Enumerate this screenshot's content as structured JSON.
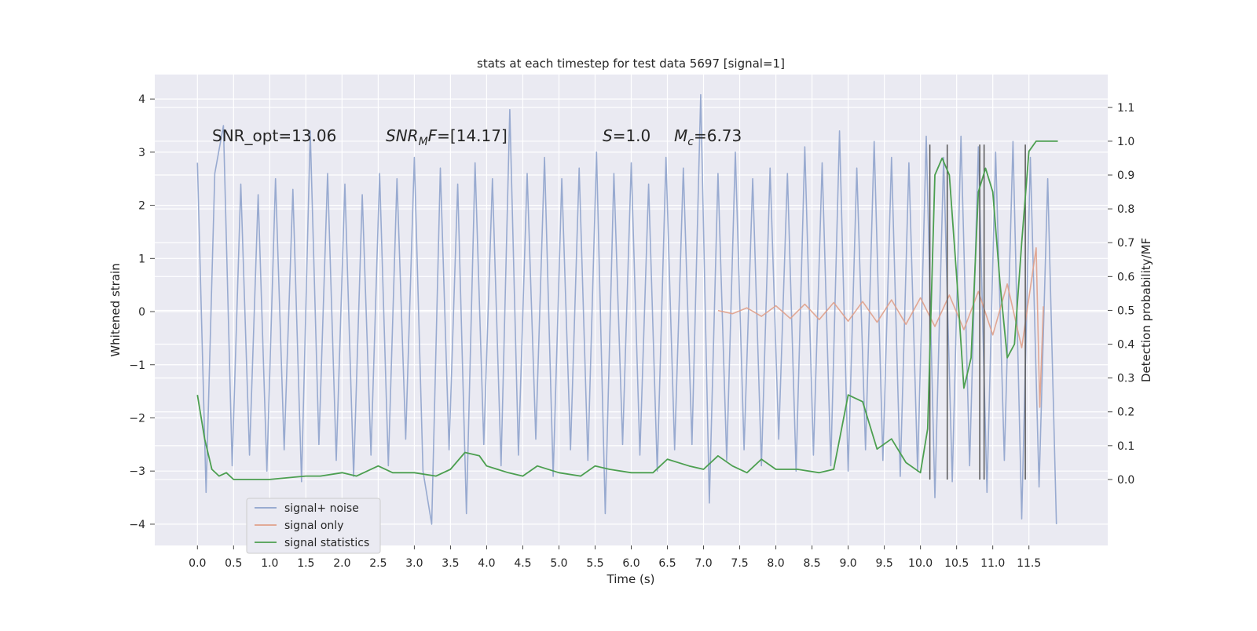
{
  "chart_data": {
    "type": "line",
    "title": "stats at each timestep for test data 5697 [signal=1]",
    "xlabel": "Time (s)",
    "ylabel": "Whitened strain",
    "y2label": "Detection probability/MF",
    "xlim": [
      -0.59,
      12.59
    ],
    "ylim": [
      -4.4,
      4.46
    ],
    "y2lim": [
      -0.195,
      1.197
    ],
    "grid": true,
    "legend": "lower left",
    "xticks": [
      {
        "value": 0,
        "label": "0.0"
      },
      {
        "value": 0.5,
        "label": "0.5"
      },
      {
        "value": 1,
        "label": "1.0"
      },
      {
        "value": 1.5,
        "label": "1.5"
      },
      {
        "value": 2,
        "label": "2.0"
      },
      {
        "value": 2.5,
        "label": "2.5"
      },
      {
        "value": 3,
        "label": "3.0"
      },
      {
        "value": 3.5,
        "label": "3.5"
      },
      {
        "value": 4,
        "label": "4.0"
      },
      {
        "value": 4.5,
        "label": "4.5"
      },
      {
        "value": 5,
        "label": "5.0"
      },
      {
        "value": 5.5,
        "label": "5.5"
      },
      {
        "value": 6,
        "label": "6.0"
      },
      {
        "value": 6.5,
        "label": "6.5"
      },
      {
        "value": 7,
        "label": "7.0"
      },
      {
        "value": 7.5,
        "label": "7.5"
      },
      {
        "value": 8,
        "label": "8.0"
      },
      {
        "value": 8.5,
        "label": "8.5"
      },
      {
        "value": 9,
        "label": "9.0"
      },
      {
        "value": 9.5,
        "label": "9.5"
      },
      {
        "value": 10,
        "label": "10.0"
      },
      {
        "value": 10.5,
        "label": "10.5"
      },
      {
        "value": 11,
        "label": "11.0"
      },
      {
        "value": 11.5,
        "label": "11.5"
      }
    ],
    "yticks": [
      {
        "value": -4,
        "label": "−4"
      },
      {
        "value": -3,
        "label": "−3"
      },
      {
        "value": -2,
        "label": "−2"
      },
      {
        "value": -1,
        "label": "−1"
      },
      0,
      1,
      2,
      3,
      4
    ],
    "y2ticks": [
      {
        "value": 0,
        "label": "0.0"
      },
      {
        "value": 0.1,
        "label": "0.1"
      },
      {
        "value": 0.2,
        "label": "0.2"
      },
      {
        "value": 0.3,
        "label": "0.3"
      },
      {
        "value": 0.4,
        "label": "0.4"
      },
      {
        "value": 0.5,
        "label": "0.5"
      },
      {
        "value": 0.6,
        "label": "0.6"
      },
      {
        "value": 0.7,
        "label": "0.7"
      },
      {
        "value": 0.8,
        "label": "0.8"
      },
      {
        "value": 0.9,
        "label": "0.9"
      },
      {
        "value": 1,
        "label": "1.0"
      },
      {
        "value": 1.1,
        "label": "1.1"
      }
    ],
    "annotations": [
      [
        {
          "text": "SNR_opt=13.06"
        }
      ],
      [
        {
          "text": "SNR",
          "italic": true
        },
        {
          "text": "M",
          "italic": true,
          "sub": true
        },
        {
          "text": "F",
          "italic": true
        },
        {
          "text": "=[14.17]"
        }
      ],
      [
        {
          "text": "S",
          "italic": true
        },
        {
          "text": "=1.0"
        }
      ],
      [
        {
          "text": "M",
          "italic": true
        },
        {
          "text": "c",
          "italic": true,
          "sub": true
        },
        {
          "text": "=6.73"
        }
      ]
    ],
    "vlines": {
      "x": [
        10.13,
        10.37,
        10.82,
        10.88,
        11.45
      ],
      "ymin": 0,
      "ymax": 0.99,
      "color": "#555555"
    },
    "series": [
      {
        "name": "signal+ noise",
        "color": "#8fa3cc",
        "x": [
          0,
          0.12,
          0.24,
          0.36,
          0.48,
          0.6,
          0.72,
          0.84,
          0.96,
          1.08,
          1.2,
          1.32,
          1.44,
          1.56,
          1.68,
          1.8,
          1.92,
          2.04,
          2.16,
          2.28,
          2.4,
          2.52,
          2.64,
          2.76,
          2.88,
          3,
          3.12,
          3.24,
          3.36,
          3.48,
          3.6,
          3.72,
          3.84,
          3.96,
          4.08,
          4.2,
          4.32,
          4.44,
          4.56,
          4.68,
          4.8,
          4.92,
          5.04,
          5.16,
          5.28,
          5.4,
          5.52,
          5.64,
          5.76,
          5.88,
          6,
          6.12,
          6.24,
          6.36,
          6.48,
          6.6,
          6.72,
          6.84,
          6.96,
          7.08,
          7.2,
          7.32,
          7.44,
          7.56,
          7.68,
          7.8,
          7.92,
          8.04,
          8.16,
          8.28,
          8.4,
          8.52,
          8.64,
          8.76,
          8.88,
          9,
          9.12,
          9.24,
          9.36,
          9.48,
          9.6,
          9.72,
          9.84,
          9.96,
          10.08,
          10.2,
          10.32,
          10.44,
          10.56,
          10.68,
          10.8,
          10.92,
          11.04,
          11.16,
          11.28,
          11.4,
          11.52,
          11.64,
          11.76,
          11.88
        ],
        "values": [
          2.8,
          -3.4,
          2.6,
          3.5,
          -2.9,
          2.4,
          -2.7,
          2.2,
          -3.0,
          2.5,
          -2.6,
          2.3,
          -3.2,
          3.4,
          -2.5,
          2.6,
          -2.8,
          2.4,
          -3.1,
          2.2,
          -2.7,
          2.6,
          -2.9,
          2.5,
          -2.4,
          2.9,
          -3.0,
          -4.0,
          2.7,
          -2.6,
          2.4,
          -3.8,
          2.8,
          -2.5,
          2.5,
          -2.9,
          3.8,
          -2.7,
          2.6,
          -2.4,
          2.9,
          -3.1,
          2.5,
          -2.6,
          2.7,
          -2.8,
          3.0,
          -3.8,
          2.6,
          -2.5,
          2.8,
          -2.7,
          2.4,
          -3.0,
          2.9,
          -2.6,
          2.7,
          -2.5,
          4.08,
          -3.6,
          2.6,
          -2.8,
          3.0,
          -2.6,
          2.5,
          -2.9,
          2.7,
          -2.4,
          2.6,
          -3.0,
          3.1,
          -2.7,
          2.8,
          -2.9,
          3.4,
          -3.0,
          2.7,
          -2.6,
          3.2,
          -2.8,
          2.9,
          -3.1,
          2.8,
          -3.0,
          3.3,
          -3.5,
          2.9,
          -3.2,
          3.3,
          -2.9,
          3.1,
          -3.4,
          3.0,
          -2.8,
          3.2,
          -3.9,
          2.9,
          -3.3,
          2.5,
          -4.0
        ]
      },
      {
        "name": "signal only",
        "color": "#e0a08a",
        "x": [
          7.2,
          7.4,
          7.6,
          7.8,
          8.0,
          8.2,
          8.4,
          8.6,
          8.8,
          9.0,
          9.2,
          9.4,
          9.6,
          9.8,
          10.0,
          10.2,
          10.4,
          10.6,
          10.8,
          11.0,
          11.2,
          11.4,
          11.6,
          11.65,
          11.7
        ],
        "values": [
          0.02,
          -0.04,
          0.07,
          -0.09,
          0.11,
          -0.13,
          0.14,
          -0.15,
          0.17,
          -0.18,
          0.19,
          -0.2,
          0.22,
          -0.24,
          0.26,
          -0.28,
          0.31,
          -0.34,
          0.38,
          -0.44,
          0.52,
          -0.68,
          1.2,
          -1.8,
          0.1
        ]
      },
      {
        "name": "signal statistics",
        "color": "#4c9f50",
        "axis": "y2",
        "x": [
          0,
          0.1,
          0.2,
          0.3,
          0.4,
          0.5,
          0.7,
          1.0,
          1.5,
          1.7,
          2.0,
          2.2,
          2.5,
          2.7,
          3.0,
          3.3,
          3.5,
          3.7,
          3.9,
          4.0,
          4.3,
          4.5,
          4.7,
          5.0,
          5.3,
          5.5,
          5.7,
          6.0,
          6.3,
          6.5,
          6.8,
          7.0,
          7.2,
          7.4,
          7.6,
          7.8,
          8.0,
          8.3,
          8.6,
          8.8,
          9.0,
          9.2,
          9.4,
          9.6,
          9.8,
          10.0,
          10.1,
          10.2,
          10.3,
          10.4,
          10.5,
          10.6,
          10.7,
          10.8,
          10.9,
          11.0,
          11.1,
          11.2,
          11.3,
          11.4,
          11.5,
          11.6,
          11.7,
          11.9
        ],
        "values": [
          0.25,
          0.12,
          0.03,
          0.01,
          0.02,
          0.0,
          0.0,
          0.0,
          0.01,
          0.01,
          0.02,
          0.01,
          0.04,
          0.02,
          0.02,
          0.01,
          0.03,
          0.08,
          0.07,
          0.04,
          0.02,
          0.01,
          0.04,
          0.02,
          0.01,
          0.04,
          0.03,
          0.02,
          0.02,
          0.06,
          0.04,
          0.03,
          0.07,
          0.04,
          0.02,
          0.06,
          0.03,
          0.03,
          0.02,
          0.03,
          0.25,
          0.23,
          0.09,
          0.12,
          0.05,
          0.02,
          0.15,
          0.9,
          0.95,
          0.9,
          0.6,
          0.27,
          0.36,
          0.85,
          0.92,
          0.85,
          0.58,
          0.36,
          0.4,
          0.7,
          0.97,
          1.0,
          1.0,
          1.0
        ]
      }
    ]
  }
}
